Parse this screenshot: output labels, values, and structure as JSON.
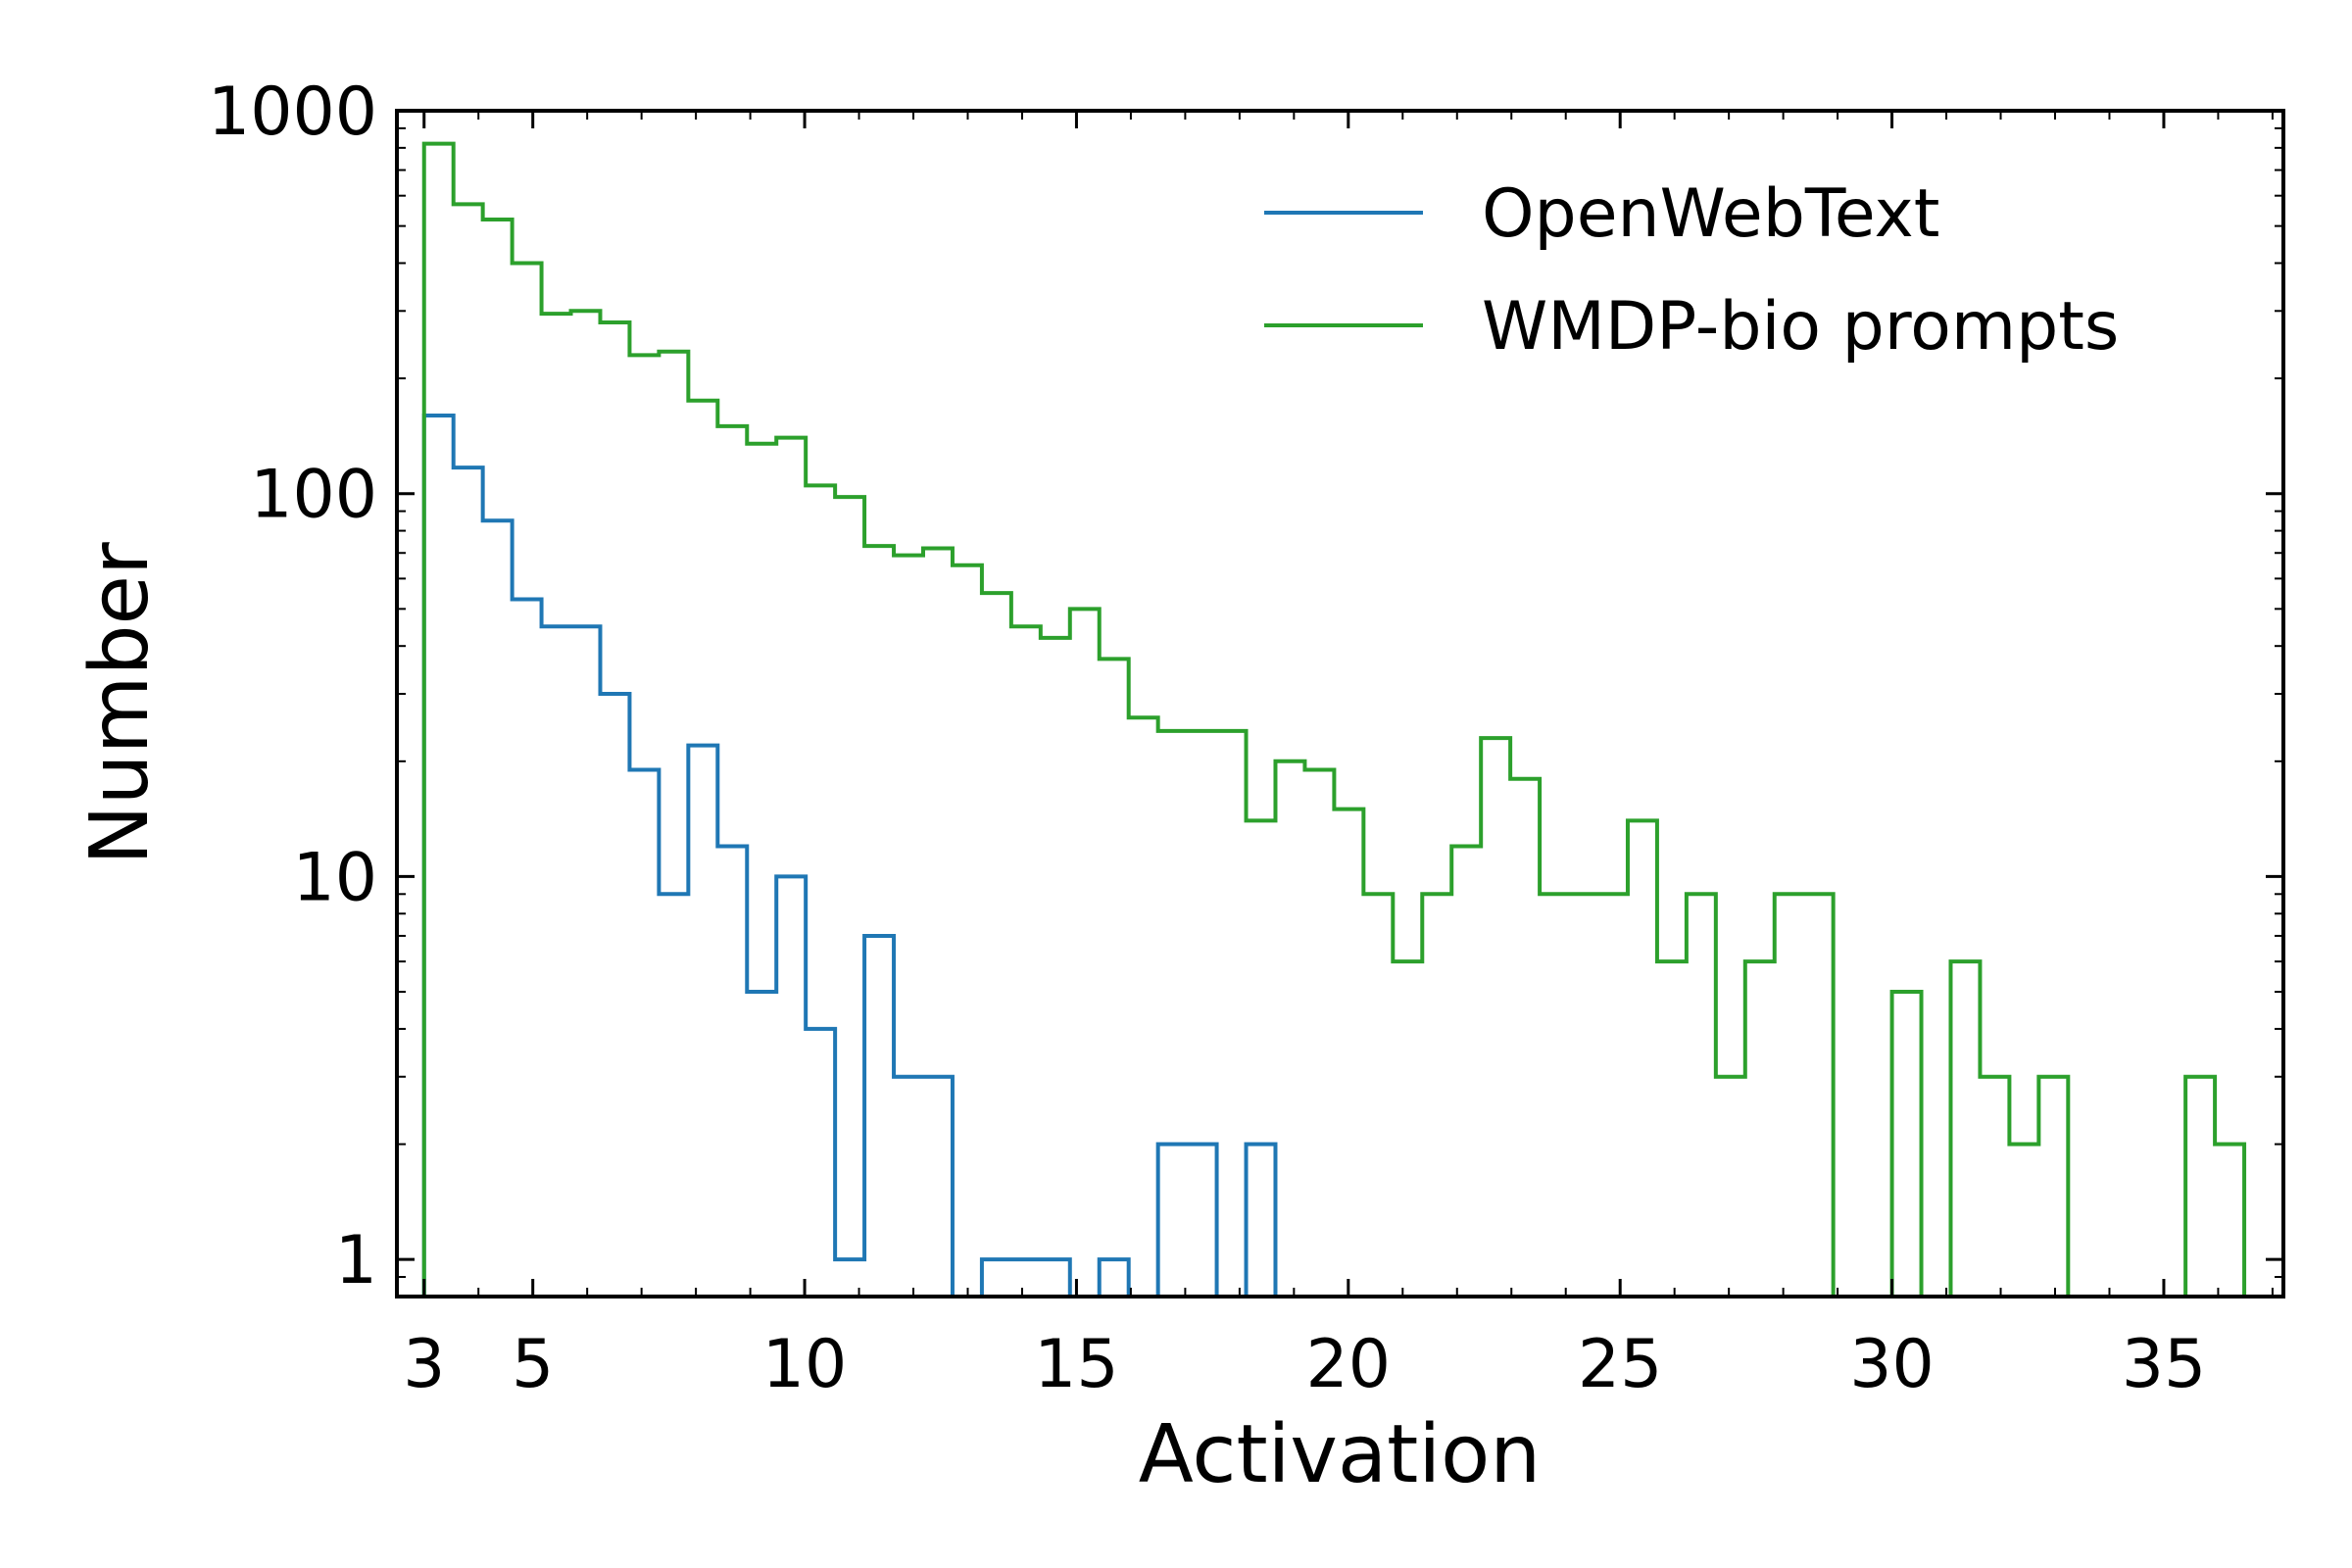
{
  "chart_data": {
    "type": "histogram-step",
    "xlabel": "Activation",
    "ylabel": "Number",
    "xlim": [
      2.5,
      37.2
    ],
    "ylim": [
      0.8,
      1000
    ],
    "yscale": "log",
    "xticks": [
      3,
      5,
      10,
      15,
      20,
      25,
      30,
      35
    ],
    "xtick_labels": [
      "3",
      "5",
      "10",
      "15",
      "20",
      "25",
      "30",
      "35"
    ],
    "yticks": [
      1,
      10,
      100,
      1000
    ],
    "ytick_labels": [
      "1",
      "10",
      "100",
      "1000"
    ],
    "grid": false,
    "legend_position": "top-right",
    "bin_start": 3.0,
    "bin_width": 0.54,
    "series": [
      {
        "name": "OpenWebText",
        "color": "#1f77b4",
        "values": [
          160,
          117,
          85,
          53,
          45,
          45,
          30,
          19,
          9,
          22,
          12,
          5,
          10,
          4,
          1,
          7,
          3,
          3,
          0,
          1,
          1,
          1,
          0,
          1,
          0,
          2,
          2,
          0,
          2,
          0
        ]
      },
      {
        "name": "WMDP-bio prompts",
        "color": "#2ca02c",
        "values": [
          820,
          570,
          520,
          400,
          295,
          300,
          280,
          230,
          235,
          175,
          150,
          135,
          140,
          105,
          98,
          73,
          69,
          72,
          65,
          55,
          45,
          42,
          50,
          37,
          26,
          24,
          24,
          24,
          14,
          20,
          19,
          15,
          9,
          6,
          9,
          12,
          23,
          18,
          9,
          9,
          9,
          14,
          6,
          9,
          3,
          6,
          9,
          9,
          0,
          0,
          5,
          0,
          6,
          3,
          2,
          3,
          0,
          0,
          0,
          0,
          3,
          2
        ]
      }
    ]
  }
}
